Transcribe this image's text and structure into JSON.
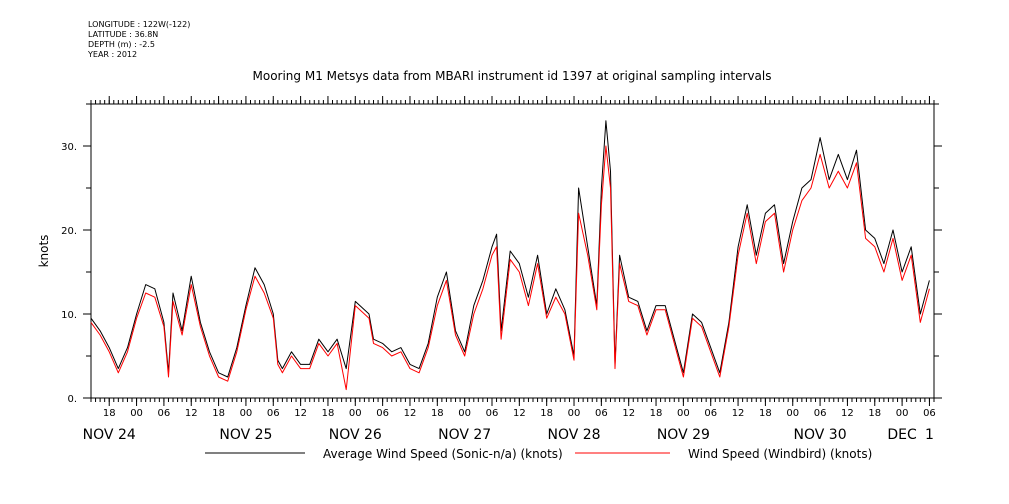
{
  "header": {
    "meta": [
      "LONGITUDE : 122W(-122)",
      "LATITUDE : 36.8N",
      "DEPTH (m) : -2.5",
      "YEAR : 2012"
    ],
    "title": "Mooring M1 Metsys data from MBARI instrument id 1397 at original sampling intervals"
  },
  "chart_data": {
    "type": "line",
    "title": "Mooring M1 Metsys data from MBARI instrument id 1397 at original sampling intervals",
    "xlabel": "",
    "ylabel": "knots",
    "xlim": [
      "2012-11-23T14:00",
      "2012-12-01T07:00"
    ],
    "ylim": [
      0,
      35
    ],
    "yticks": [
      0,
      10,
      20,
      30
    ],
    "ytick_labels": [
      "0.",
      "10.",
      "20.",
      "30."
    ],
    "hour_ticks": [
      {
        "t": "2012-11-23T18:00",
        "label": "18"
      },
      {
        "t": "2012-11-24T00:00",
        "label": "00"
      },
      {
        "t": "2012-11-24T06:00",
        "label": "06"
      },
      {
        "t": "2012-11-24T12:00",
        "label": "12"
      },
      {
        "t": "2012-11-24T18:00",
        "label": "18"
      },
      {
        "t": "2012-11-25T00:00",
        "label": "00"
      },
      {
        "t": "2012-11-25T06:00",
        "label": "06"
      },
      {
        "t": "2012-11-25T12:00",
        "label": "12"
      },
      {
        "t": "2012-11-25T18:00",
        "label": "18"
      },
      {
        "t": "2012-11-26T00:00",
        "label": "00"
      },
      {
        "t": "2012-11-26T06:00",
        "label": "06"
      },
      {
        "t": "2012-11-26T12:00",
        "label": "12"
      },
      {
        "t": "2012-11-26T18:00",
        "label": "18"
      },
      {
        "t": "2012-11-27T00:00",
        "label": "00"
      },
      {
        "t": "2012-11-27T06:00",
        "label": "06"
      },
      {
        "t": "2012-11-27T12:00",
        "label": "12"
      },
      {
        "t": "2012-11-27T18:00",
        "label": "18"
      },
      {
        "t": "2012-11-28T00:00",
        "label": "00"
      },
      {
        "t": "2012-11-28T06:00",
        "label": "06"
      },
      {
        "t": "2012-11-28T12:00",
        "label": "12"
      },
      {
        "t": "2012-11-28T18:00",
        "label": "18"
      },
      {
        "t": "2012-11-29T00:00",
        "label": "00"
      },
      {
        "t": "2012-11-29T06:00",
        "label": "06"
      },
      {
        "t": "2012-11-29T12:00",
        "label": "12"
      },
      {
        "t": "2012-11-29T18:00",
        "label": "18"
      },
      {
        "t": "2012-11-30T00:00",
        "label": "00"
      },
      {
        "t": "2012-11-30T06:00",
        "label": "06"
      },
      {
        "t": "2012-11-30T12:00",
        "label": "12"
      },
      {
        "t": "2012-11-30T18:00",
        "label": "18"
      },
      {
        "t": "2012-12-01T00:00",
        "label": "00"
      },
      {
        "t": "2012-12-01T06:00",
        "label": "06"
      }
    ],
    "day_labels": [
      {
        "t": "2012-11-23T18:00",
        "label": "NOV 24"
      },
      {
        "t": "2012-11-25T00:00",
        "label": "NOV 25"
      },
      {
        "t": "2012-11-26T00:00",
        "label": "NOV 26"
      },
      {
        "t": "2012-11-27T00:00",
        "label": "NOV 27"
      },
      {
        "t": "2012-11-28T00:00",
        "label": "NOV 28"
      },
      {
        "t": "2012-11-29T00:00",
        "label": "NOV 29"
      },
      {
        "t": "2012-11-30T06:00",
        "label": "NOV 30"
      },
      {
        "t": "2012-12-01T00:00",
        "label": "DEC"
      },
      {
        "t": "2012-12-01T06:00",
        "label": "1"
      }
    ],
    "grid": false,
    "legend_position": "bottom",
    "series": [
      {
        "name": "Average Wind Speed (Sonic-n/a) (knots)",
        "color": "#000000",
        "points": [
          [
            "2012-11-23T14:00",
            9.5
          ],
          [
            "2012-11-23T16:00",
            8.0
          ],
          [
            "2012-11-23T18:00",
            6.0
          ],
          [
            "2012-11-23T20:00",
            3.5
          ],
          [
            "2012-11-23T22:00",
            6.0
          ],
          [
            "2012-11-24T00:00",
            10.0
          ],
          [
            "2012-11-24T02:00",
            13.5
          ],
          [
            "2012-11-24T04:00",
            13.0
          ],
          [
            "2012-11-24T06:00",
            9.0
          ],
          [
            "2012-11-24T07:00",
            3.0
          ],
          [
            "2012-11-24T08:00",
            12.5
          ],
          [
            "2012-11-24T10:00",
            8.0
          ],
          [
            "2012-11-24T12:00",
            14.5
          ],
          [
            "2012-11-24T14:00",
            9.0
          ],
          [
            "2012-11-24T16:00",
            5.5
          ],
          [
            "2012-11-24T18:00",
            3.0
          ],
          [
            "2012-11-24T20:00",
            2.5
          ],
          [
            "2012-11-24T22:00",
            6.0
          ],
          [
            "2012-11-25T00:00",
            11.0
          ],
          [
            "2012-11-25T02:00",
            15.5
          ],
          [
            "2012-11-25T04:00",
            13.5
          ],
          [
            "2012-11-25T06:00",
            10.0
          ],
          [
            "2012-11-25T07:00",
            4.5
          ],
          [
            "2012-11-25T08:00",
            3.5
          ],
          [
            "2012-11-25T10:00",
            5.5
          ],
          [
            "2012-11-25T12:00",
            4.0
          ],
          [
            "2012-11-25T14:00",
            4.0
          ],
          [
            "2012-11-25T16:00",
            7.0
          ],
          [
            "2012-11-25T18:00",
            5.5
          ],
          [
            "2012-11-25T20:00",
            7.0
          ],
          [
            "2012-11-25T22:00",
            3.5
          ],
          [
            "2012-11-26T00:00",
            11.5
          ],
          [
            "2012-11-26T02:00",
            10.5
          ],
          [
            "2012-11-26T03:00",
            10.0
          ],
          [
            "2012-11-26T04:00",
            7.0
          ],
          [
            "2012-11-26T06:00",
            6.5
          ],
          [
            "2012-11-26T08:00",
            5.5
          ],
          [
            "2012-11-26T10:00",
            6.0
          ],
          [
            "2012-11-26T12:00",
            4.0
          ],
          [
            "2012-11-26T14:00",
            3.5
          ],
          [
            "2012-11-26T16:00",
            6.5
          ],
          [
            "2012-11-26T18:00",
            12.0
          ],
          [
            "2012-11-26T20:00",
            15.0
          ],
          [
            "2012-11-26T22:00",
            8.0
          ],
          [
            "2012-11-27T00:00",
            5.5
          ],
          [
            "2012-11-27T02:00",
            11.0
          ],
          [
            "2012-11-27T04:00",
            14.0
          ],
          [
            "2012-11-27T06:00",
            18.0
          ],
          [
            "2012-11-27T07:00",
            19.5
          ],
          [
            "2012-11-27T08:00",
            8.0
          ],
          [
            "2012-11-27T10:00",
            17.5
          ],
          [
            "2012-11-27T12:00",
            16.0
          ],
          [
            "2012-11-27T14:00",
            12.0
          ],
          [
            "2012-11-27T16:00",
            17.0
          ],
          [
            "2012-11-27T18:00",
            10.0
          ],
          [
            "2012-11-27T20:00",
            13.0
          ],
          [
            "2012-11-27T22:00",
            10.5
          ],
          [
            "2012-11-28T00:00",
            5.0
          ],
          [
            "2012-11-28T01:00",
            25.0
          ],
          [
            "2012-11-28T03:00",
            18.0
          ],
          [
            "2012-11-28T05:00",
            11.0
          ],
          [
            "2012-11-28T06:00",
            25.0
          ],
          [
            "2012-11-28T07:00",
            33.0
          ],
          [
            "2012-11-28T08:00",
            27.0
          ],
          [
            "2012-11-28T09:00",
            4.0
          ],
          [
            "2012-11-28T10:00",
            17.0
          ],
          [
            "2012-11-28T12:00",
            12.0
          ],
          [
            "2012-11-28T14:00",
            11.5
          ],
          [
            "2012-11-28T16:00",
            8.0
          ],
          [
            "2012-11-28T18:00",
            11.0
          ],
          [
            "2012-11-28T20:00",
            11.0
          ],
          [
            "2012-11-28T22:00",
            7.0
          ],
          [
            "2012-11-29T00:00",
            3.0
          ],
          [
            "2012-11-29T02:00",
            10.0
          ],
          [
            "2012-11-29T04:00",
            9.0
          ],
          [
            "2012-11-29T06:00",
            6.0
          ],
          [
            "2012-11-29T08:00",
            3.0
          ],
          [
            "2012-11-29T10:00",
            9.0
          ],
          [
            "2012-11-29T12:00",
            18.0
          ],
          [
            "2012-11-29T14:00",
            23.0
          ],
          [
            "2012-11-29T16:00",
            17.0
          ],
          [
            "2012-11-29T18:00",
            22.0
          ],
          [
            "2012-11-29T20:00",
            23.0
          ],
          [
            "2012-11-29T22:00",
            16.0
          ],
          [
            "2012-11-30T00:00",
            21.0
          ],
          [
            "2012-11-30T02:00",
            25.0
          ],
          [
            "2012-11-30T04:00",
            26.0
          ],
          [
            "2012-11-30T06:00",
            31.0
          ],
          [
            "2012-11-30T08:00",
            26.0
          ],
          [
            "2012-11-30T10:00",
            29.0
          ],
          [
            "2012-11-30T12:00",
            26.0
          ],
          [
            "2012-11-30T14:00",
            29.5
          ],
          [
            "2012-11-30T16:00",
            20.0
          ],
          [
            "2012-11-30T18:00",
            19.0
          ],
          [
            "2012-11-30T20:00",
            16.0
          ],
          [
            "2012-11-30T22:00",
            20.0
          ],
          [
            "2012-12-01T00:00",
            15.0
          ],
          [
            "2012-12-01T02:00",
            18.0
          ],
          [
            "2012-12-01T04:00",
            10.0
          ],
          [
            "2012-12-01T06:00",
            14.0
          ]
        ]
      },
      {
        "name": "Wind Speed (Windbird) (knots)",
        "color": "#ff0000",
        "points": [
          [
            "2012-11-23T14:00",
            9.0
          ],
          [
            "2012-11-23T16:00",
            7.5
          ],
          [
            "2012-11-23T18:00",
            5.5
          ],
          [
            "2012-11-23T20:00",
            3.0
          ],
          [
            "2012-11-23T22:00",
            5.5
          ],
          [
            "2012-11-24T00:00",
            9.5
          ],
          [
            "2012-11-24T02:00",
            12.5
          ],
          [
            "2012-11-24T04:00",
            12.0
          ],
          [
            "2012-11-24T06:00",
            8.5
          ],
          [
            "2012-11-24T07:00",
            2.5
          ],
          [
            "2012-11-24T08:00",
            11.5
          ],
          [
            "2012-11-24T10:00",
            7.5
          ],
          [
            "2012-11-24T12:00",
            13.5
          ],
          [
            "2012-11-24T14:00",
            8.5
          ],
          [
            "2012-11-24T16:00",
            5.0
          ],
          [
            "2012-11-24T18:00",
            2.5
          ],
          [
            "2012-11-24T20:00",
            2.0
          ],
          [
            "2012-11-24T22:00",
            5.5
          ],
          [
            "2012-11-25T00:00",
            10.5
          ],
          [
            "2012-11-25T02:00",
            14.5
          ],
          [
            "2012-11-25T04:00",
            12.5
          ],
          [
            "2012-11-25T06:00",
            9.5
          ],
          [
            "2012-11-25T07:00",
            4.0
          ],
          [
            "2012-11-25T08:00",
            3.0
          ],
          [
            "2012-11-25T10:00",
            5.0
          ],
          [
            "2012-11-25T12:00",
            3.5
          ],
          [
            "2012-11-25T14:00",
            3.5
          ],
          [
            "2012-11-25T16:00",
            6.5
          ],
          [
            "2012-11-25T18:00",
            5.0
          ],
          [
            "2012-11-25T20:00",
            6.5
          ],
          [
            "2012-11-25T22:00",
            1.0
          ],
          [
            "2012-11-26T00:00",
            11.0
          ],
          [
            "2012-11-26T02:00",
            10.0
          ],
          [
            "2012-11-26T03:00",
            9.5
          ],
          [
            "2012-11-26T04:00",
            6.5
          ],
          [
            "2012-11-26T06:00",
            6.0
          ],
          [
            "2012-11-26T08:00",
            5.0
          ],
          [
            "2012-11-26T10:00",
            5.5
          ],
          [
            "2012-11-26T12:00",
            3.5
          ],
          [
            "2012-11-26T14:00",
            3.0
          ],
          [
            "2012-11-26T16:00",
            6.0
          ],
          [
            "2012-11-26T18:00",
            11.0
          ],
          [
            "2012-11-26T20:00",
            14.0
          ],
          [
            "2012-11-26T22:00",
            7.5
          ],
          [
            "2012-11-27T00:00",
            5.0
          ],
          [
            "2012-11-27T02:00",
            10.0
          ],
          [
            "2012-11-27T04:00",
            13.0
          ],
          [
            "2012-11-27T06:00",
            17.0
          ],
          [
            "2012-11-27T07:00",
            18.0
          ],
          [
            "2012-11-27T08:00",
            7.0
          ],
          [
            "2012-11-27T10:00",
            16.5
          ],
          [
            "2012-11-27T12:00",
            15.0
          ],
          [
            "2012-11-27T14:00",
            11.0
          ],
          [
            "2012-11-27T16:00",
            16.0
          ],
          [
            "2012-11-27T18:00",
            9.5
          ],
          [
            "2012-11-27T20:00",
            12.0
          ],
          [
            "2012-11-27T22:00",
            10.0
          ],
          [
            "2012-11-28T00:00",
            4.5
          ],
          [
            "2012-11-28T01:00",
            22.0
          ],
          [
            "2012-11-28T03:00",
            17.0
          ],
          [
            "2012-11-28T05:00",
            10.5
          ],
          [
            "2012-11-28T06:00",
            23.0
          ],
          [
            "2012-11-28T07:00",
            30.0
          ],
          [
            "2012-11-28T08:00",
            25.0
          ],
          [
            "2012-11-28T09:00",
            3.5
          ],
          [
            "2012-11-28T10:00",
            16.0
          ],
          [
            "2012-11-28T12:00",
            11.5
          ],
          [
            "2012-11-28T14:00",
            11.0
          ],
          [
            "2012-11-28T16:00",
            7.5
          ],
          [
            "2012-11-28T18:00",
            10.5
          ],
          [
            "2012-11-28T20:00",
            10.5
          ],
          [
            "2012-11-28T22:00",
            6.5
          ],
          [
            "2012-11-29T00:00",
            2.5
          ],
          [
            "2012-11-29T02:00",
            9.5
          ],
          [
            "2012-11-29T04:00",
            8.5
          ],
          [
            "2012-11-29T06:00",
            5.5
          ],
          [
            "2012-11-29T08:00",
            2.5
          ],
          [
            "2012-11-29T10:00",
            8.5
          ],
          [
            "2012-11-29T12:00",
            17.0
          ],
          [
            "2012-11-29T14:00",
            22.0
          ],
          [
            "2012-11-29T16:00",
            16.0
          ],
          [
            "2012-11-29T18:00",
            21.0
          ],
          [
            "2012-11-29T20:00",
            22.0
          ],
          [
            "2012-11-29T22:00",
            15.0
          ],
          [
            "2012-11-30T00:00",
            20.0
          ],
          [
            "2012-11-30T02:00",
            23.5
          ],
          [
            "2012-11-30T04:00",
            25.0
          ],
          [
            "2012-11-30T06:00",
            29.0
          ],
          [
            "2012-11-30T08:00",
            25.0
          ],
          [
            "2012-11-30T10:00",
            27.0
          ],
          [
            "2012-11-30T12:00",
            25.0
          ],
          [
            "2012-11-30T14:00",
            28.0
          ],
          [
            "2012-11-30T16:00",
            19.0
          ],
          [
            "2012-11-30T18:00",
            18.0
          ],
          [
            "2012-11-30T20:00",
            15.0
          ],
          [
            "2012-11-30T22:00",
            19.0
          ],
          [
            "2012-12-01T00:00",
            14.0
          ],
          [
            "2012-12-01T02:00",
            17.0
          ],
          [
            "2012-12-01T04:00",
            9.0
          ],
          [
            "2012-12-01T06:00",
            13.0
          ]
        ]
      }
    ]
  }
}
